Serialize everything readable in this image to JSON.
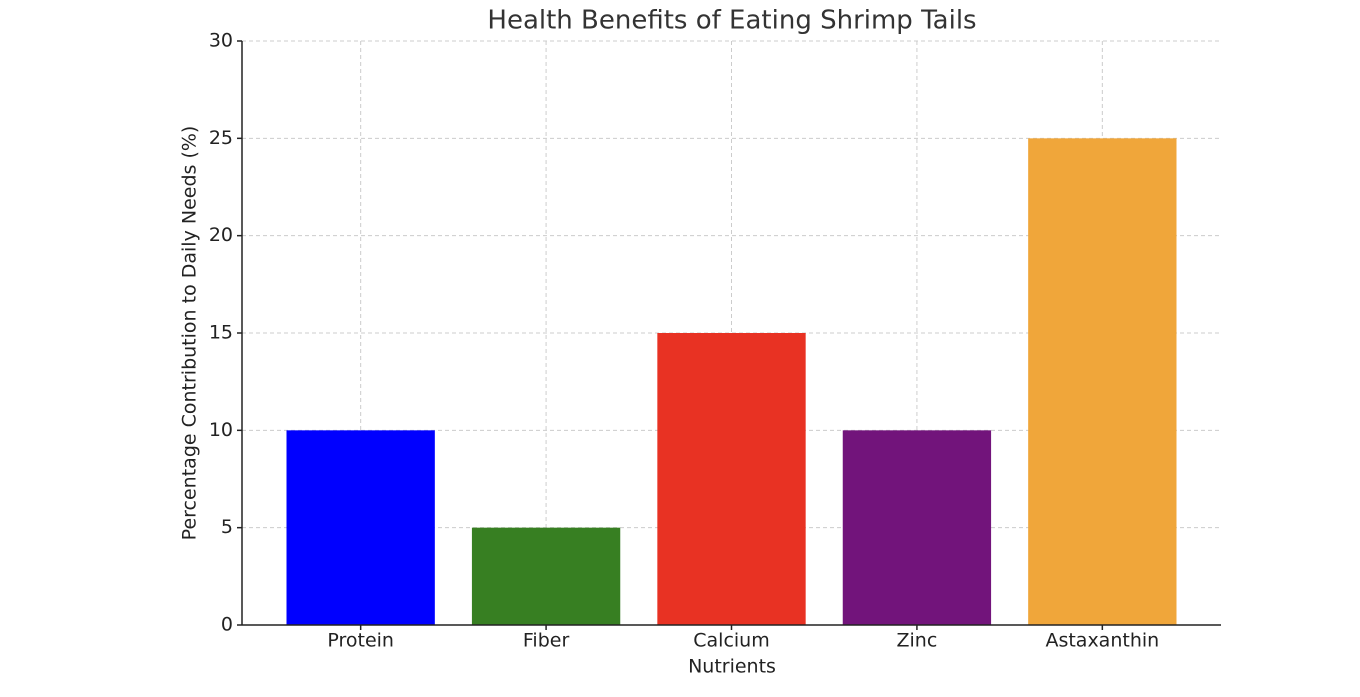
{
  "chart_data": {
    "type": "bar",
    "title": "Health Benefits of Eating Shrimp Tails",
    "x_label": "Nutrients",
    "y_label": "Percentage Contribution to Daily Needs (%)",
    "categories": [
      "Protein",
      "Fiber",
      "Calcium",
      "Zinc",
      "Astaxanthin"
    ],
    "values": [
      10,
      5,
      15,
      10,
      25
    ],
    "colors": [
      "#0000ff",
      "#377f22",
      "#e83223",
      "#72147b",
      "#f0a63a"
    ],
    "ylim": [
      0,
      30
    ],
    "yticks": [
      0,
      5,
      10,
      15,
      20,
      25,
      30
    ],
    "grid": true
  }
}
